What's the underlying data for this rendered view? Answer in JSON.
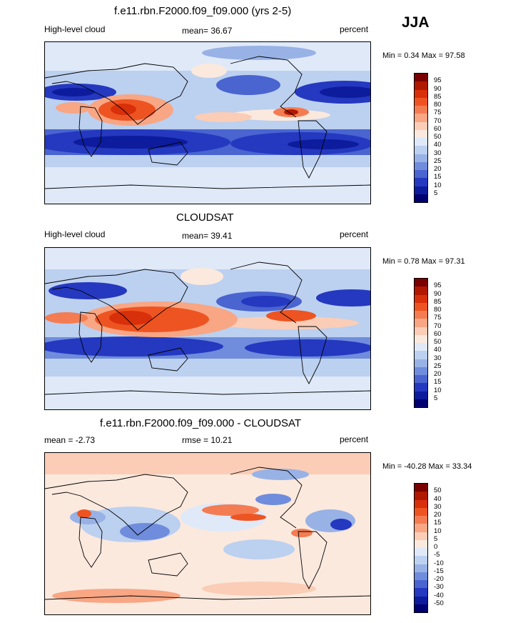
{
  "season": "JJA",
  "panels": [
    {
      "title": "f.e11.rbn.F2000.f09_f09.000 (yrs 2-5)",
      "left_label": "High-level cloud",
      "center_label": "mean=  36.67",
      "right_label": "percent",
      "minmax": "Min =   0.34 Max =  97.58",
      "levels": [
        "95",
        "90",
        "85",
        "80",
        "75",
        "70",
        "60",
        "50",
        "40",
        "30",
        "25",
        "20",
        "15",
        "10",
        "5"
      ]
    },
    {
      "title": "CLOUDSAT",
      "left_label": "High-level cloud",
      "center_label": "mean=  39.41",
      "right_label": "percent",
      "minmax": "Min =   0.78 Max =  97.31",
      "levels": [
        "95",
        "90",
        "85",
        "80",
        "75",
        "70",
        "60",
        "50",
        "40",
        "30",
        "25",
        "20",
        "15",
        "10",
        "5"
      ]
    },
    {
      "title": "f.e11.rbn.F2000.f09_f09.000 - CLOUDSAT",
      "left_label": "mean =  -2.73",
      "center_label": "rmse =  10.21",
      "right_label": "percent",
      "minmax": "Min = -40.28 Max =  33.34",
      "levels": [
        "50",
        "40",
        "30",
        "20",
        "15",
        "10",
        "5",
        "0",
        "-5",
        "-10",
        "-15",
        "-20",
        "-30",
        "-40",
        "-50"
      ]
    }
  ],
  "colors": {
    "scale": [
      "#7a0000",
      "#b01800",
      "#d8300a",
      "#ee5422",
      "#f47c52",
      "#f8a684",
      "#fbcdb6",
      "#fbe9de",
      "#dfe9f8",
      "#bcd0f0",
      "#98b2e6",
      "#6f8ddc",
      "#4a64d0",
      "#2438c0",
      "#0c1c9c",
      "#000070"
    ]
  },
  "chart_data": [
    {
      "type": "heatmap",
      "title": "f.e11.rbn.F2000.f09_f09.000 (yrs 2-5)",
      "variable": "High-level cloud",
      "units": "percent",
      "mean": 36.67,
      "min": 0.34,
      "max": 97.58,
      "contour_levels": [
        5,
        10,
        15,
        20,
        25,
        30,
        40,
        50,
        60,
        70,
        75,
        80,
        85,
        90,
        95
      ]
    },
    {
      "type": "heatmap",
      "title": "CLOUDSAT",
      "variable": "High-level cloud",
      "units": "percent",
      "mean": 39.41,
      "min": 0.78,
      "max": 97.31,
      "contour_levels": [
        5,
        10,
        15,
        20,
        25,
        30,
        40,
        50,
        60,
        70,
        75,
        80,
        85,
        90,
        95
      ]
    },
    {
      "type": "heatmap",
      "title": "f.e11.rbn.F2000.f09_f09.000 - CLOUDSAT",
      "units": "percent",
      "mean": -2.73,
      "rmse": 10.21,
      "min": -40.28,
      "max": 33.34,
      "contour_levels": [
        -50,
        -40,
        -30,
        -20,
        -15,
        -10,
        -5,
        0,
        5,
        10,
        15,
        20,
        30,
        40,
        50
      ]
    }
  ]
}
